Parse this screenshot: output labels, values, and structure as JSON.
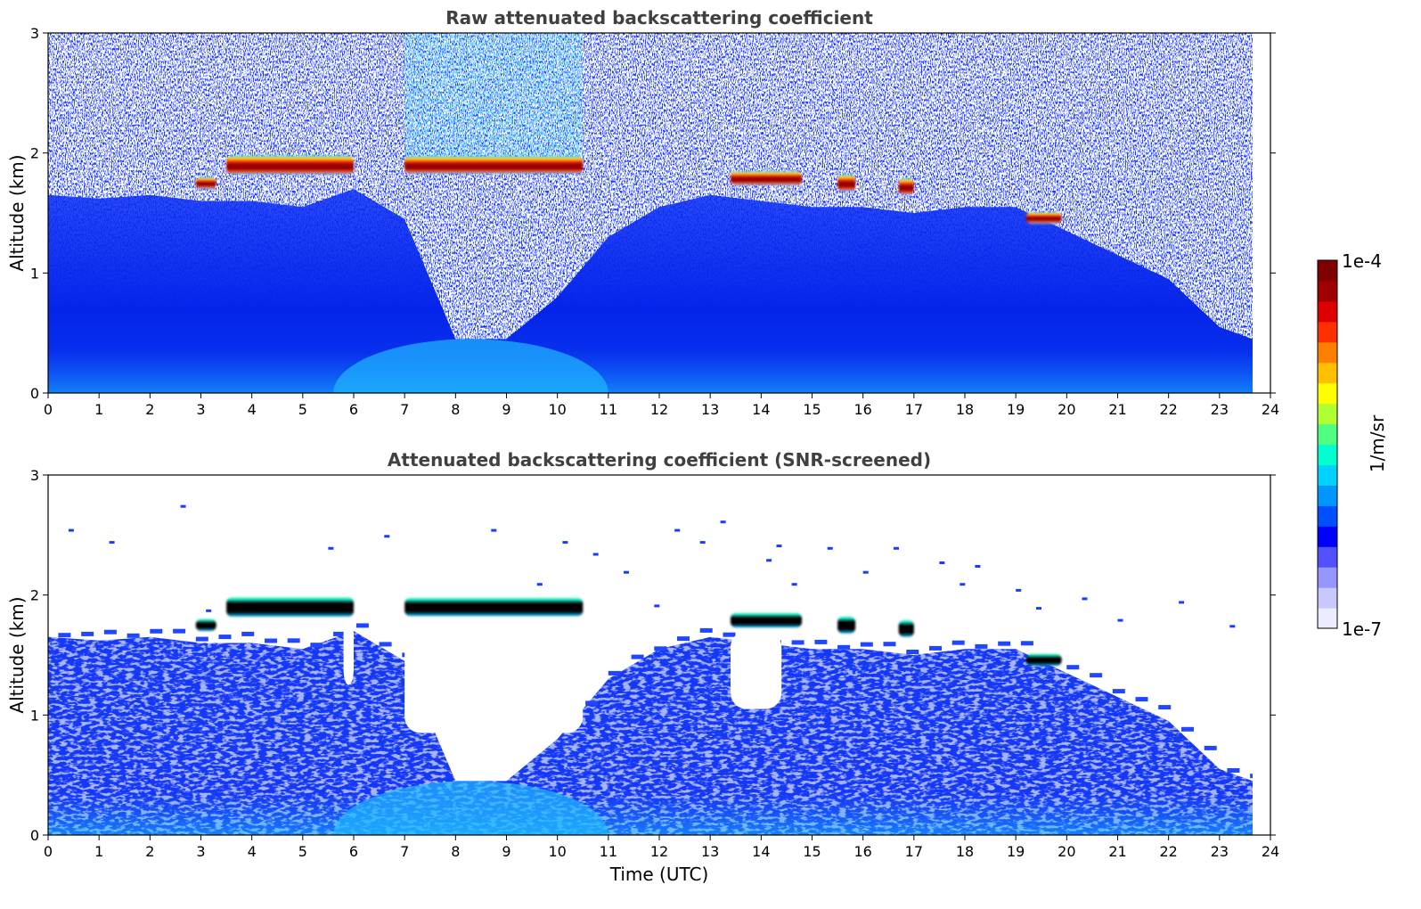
{
  "chart_data": [
    {
      "type": "heatmap",
      "title": "Raw attenuated backscattering coefficient",
      "xlabel": "",
      "ylabel": "Altitude (km)",
      "xlim": [
        0,
        24
      ],
      "ylim": [
        0,
        3
      ],
      "x_ticks": [
        "0",
        "1",
        "2",
        "3",
        "4",
        "5",
        "6",
        "7",
        "8",
        "9",
        "10",
        "11",
        "12",
        "13",
        "14",
        "15",
        "16",
        "17",
        "18",
        "19",
        "20",
        "21",
        "22",
        "23",
        "24"
      ],
      "y_ticks": [
        "0",
        "1",
        "2",
        "3"
      ],
      "noise": "high",
      "data_end_hour": 23.65,
      "cloud_layers": [
        {
          "start_hour": 2.9,
          "end_hour": 3.3,
          "altitude_km": 1.75,
          "thickness_km": 0.1
        },
        {
          "start_hour": 3.5,
          "end_hour": 6.0,
          "altitude_km": 1.9,
          "thickness_km": 0.16
        },
        {
          "start_hour": 7.0,
          "end_hour": 10.5,
          "altitude_km": 1.9,
          "thickness_km": 0.15
        },
        {
          "start_hour": 13.4,
          "end_hour": 14.8,
          "altitude_km": 1.79,
          "thickness_km": 0.12
        },
        {
          "start_hour": 15.5,
          "end_hour": 15.85,
          "altitude_km": 1.75,
          "thickness_km": 0.14
        },
        {
          "start_hour": 16.7,
          "end_hour": 17.0,
          "altitude_km": 1.72,
          "thickness_km": 0.14
        },
        {
          "start_hour": 19.2,
          "end_hour": 19.9,
          "altitude_km": 1.46,
          "thickness_km": 0.1
        }
      ]
    },
    {
      "type": "heatmap",
      "title": "Attenuated backscattering coefficient (SNR-screened)",
      "xlabel": "Time (UTC)",
      "ylabel": "Altitude (km)",
      "xlim": [
        0,
        24
      ],
      "ylim": [
        0,
        3
      ],
      "x_ticks": [
        "0",
        "1",
        "2",
        "3",
        "4",
        "5",
        "6",
        "7",
        "8",
        "9",
        "10",
        "11",
        "12",
        "13",
        "14",
        "15",
        "16",
        "17",
        "18",
        "19",
        "20",
        "21",
        "22",
        "23",
        "24"
      ],
      "y_ticks": [
        "0",
        "1",
        "2",
        "3"
      ],
      "noise": "screened",
      "data_end_hour": 23.65,
      "screened_gaps": [
        {
          "start_hour": 7.0,
          "end_hour": 10.5,
          "bottom_km": 0.85,
          "top_km": 1.8
        },
        {
          "start_hour": 13.4,
          "end_hour": 14.4,
          "bottom_km": 1.05,
          "top_km": 1.7
        },
        {
          "start_hour": 5.8,
          "end_hour": 6.0,
          "bottom_km": 1.25,
          "top_km": 1.8
        }
      ],
      "cloud_layers": [
        {
          "start_hour": 2.9,
          "end_hour": 3.3,
          "altitude_km": 1.75,
          "thickness_km": 0.1
        },
        {
          "start_hour": 3.5,
          "end_hour": 6.0,
          "altitude_km": 1.9,
          "thickness_km": 0.16
        },
        {
          "start_hour": 7.0,
          "end_hour": 10.5,
          "altitude_km": 1.9,
          "thickness_km": 0.15
        },
        {
          "start_hour": 13.4,
          "end_hour": 14.8,
          "altitude_km": 1.79,
          "thickness_km": 0.12
        },
        {
          "start_hour": 15.5,
          "end_hour": 15.85,
          "altitude_km": 1.75,
          "thickness_km": 0.14
        },
        {
          "start_hour": 16.7,
          "end_hour": 17.0,
          "altitude_km": 1.72,
          "thickness_km": 0.14
        },
        {
          "start_hour": 19.2,
          "end_hour": 19.9,
          "altitude_km": 1.46,
          "thickness_km": 0.1
        }
      ]
    }
  ],
  "colorbar": {
    "label": "1/m/sr",
    "max_label": "1e-4",
    "min_label": "1e-7",
    "scale": "log",
    "min": 1e-07,
    "max": 0.0001,
    "colors": [
      "#ececff",
      "#c8c8ff",
      "#9696ff",
      "#5050ff",
      "#0000ff",
      "#0050ff",
      "#0096ff",
      "#00d2ff",
      "#00ffd0",
      "#50ff80",
      "#b0ff30",
      "#ffff00",
      "#ffc000",
      "#ff8000",
      "#ff3000",
      "#dd0000",
      "#a00000",
      "#800000"
    ]
  },
  "colors": {
    "title": "#404040",
    "axis": "#000000",
    "background_blue": "#0a22f0",
    "cloud_core_raw": "#8b0000",
    "cloud_core_screened": "#050505"
  }
}
